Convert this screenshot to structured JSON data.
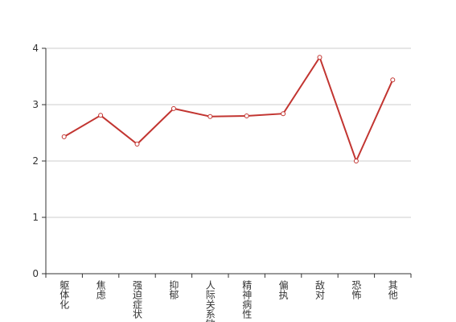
{
  "chart_data": {
    "type": "line",
    "categories": [
      "躯体化",
      "焦虑",
      "强迫症状",
      "抑郁",
      "人际关系敏感",
      "精神病性",
      "偏执",
      "敌对",
      "恐怖",
      "其他"
    ],
    "series": [
      {
        "color": "#c23531",
        "values": [
          2.43,
          2.81,
          2.3,
          2.93,
          2.79,
          2.8,
          2.84,
          3.84,
          2.0,
          3.44
        ]
      }
    ],
    "ylim": [
      0,
      4
    ],
    "yticks": [
      0,
      1,
      2,
      3,
      4
    ],
    "grid": true
  }
}
